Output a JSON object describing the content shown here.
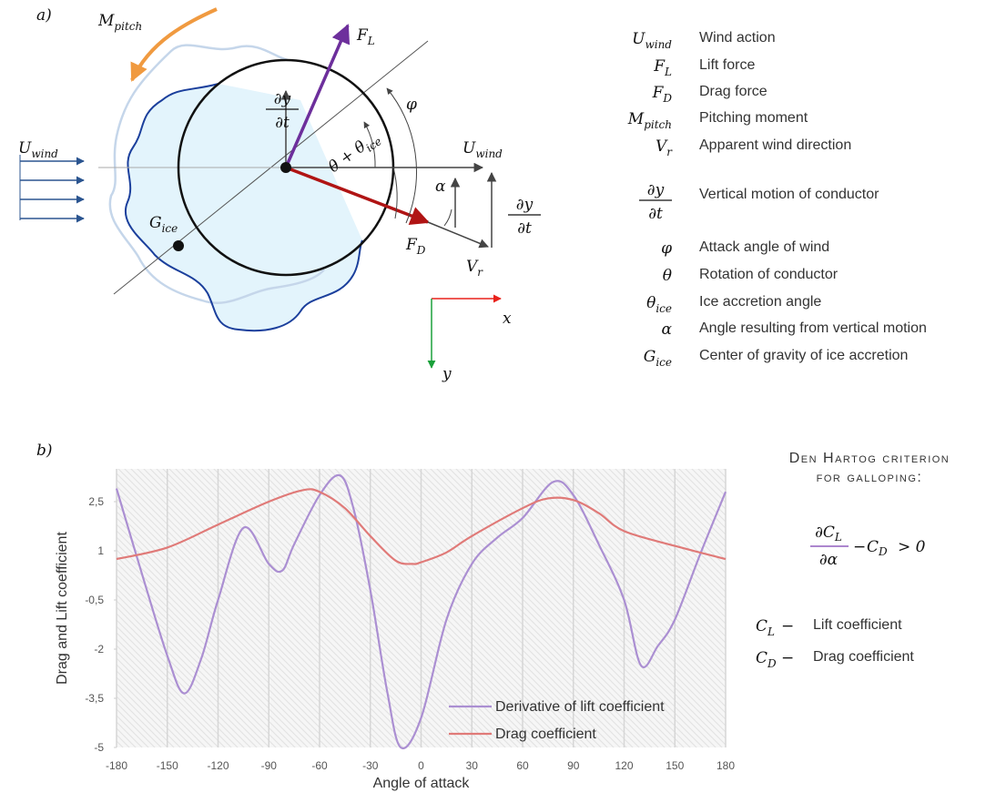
{
  "diagram": {
    "panel_label": "a)",
    "labels": [
      {
        "main": "M",
        "sub": "pitch"
      },
      {
        "main": "F",
        "sub": "L"
      },
      {
        "num": "∂y",
        "den": "∂t"
      },
      {
        "main": "φ"
      },
      {
        "main": "θ + θ",
        "sub": "ice"
      },
      {
        "main": "U",
        "sub": "wind"
      },
      {
        "main": "U",
        "sub": "wind"
      },
      {
        "main": "α"
      },
      {
        "num": "∂y",
        "den": "∂t"
      },
      {
        "main": "F",
        "sub": "D"
      },
      {
        "main": "V",
        "sub": "r"
      },
      {
        "main": "G",
        "sub": "ice"
      },
      {
        "main": "x"
      },
      {
        "main": "y"
      }
    ]
  },
  "legend": [
    {
      "symbol": {
        "main": "U",
        "sub": "wind"
      },
      "text": "Wind action"
    },
    {
      "symbol": {
        "main": "F",
        "sub": "L"
      },
      "text": "Lift force"
    },
    {
      "symbol": {
        "main": "F",
        "sub": "D"
      },
      "text": "Drag force"
    },
    {
      "symbol": {
        "main": "M",
        "sub": "pitch"
      },
      "text": "Pitching moment"
    },
    {
      "symbol": {
        "main": "V",
        "sub": "r"
      },
      "text": "Apparent wind direction"
    },
    {
      "symbol": {
        "num": "∂y",
        "den": "∂t"
      },
      "text": "Vertical motion of conductor"
    },
    {
      "symbol": {
        "main": "φ"
      },
      "text": "Attack angle of wind"
    },
    {
      "symbol": {
        "main": "θ"
      },
      "text": "Rotation of conductor"
    },
    {
      "symbol": {
        "main": "θ",
        "sub": "ice"
      },
      "text": "Ice accretion angle"
    },
    {
      "symbol": {
        "main": "α"
      },
      "text": "Angle resulting from vertical motion"
    },
    {
      "symbol": {
        "main": "G",
        "sub": "ice"
      },
      "text": "Center of gravity of ice accretion"
    }
  ],
  "panel_b_label": "b)",
  "criterion": {
    "title_lines": [
      "Den Hartog criterion",
      "for galloping:"
    ],
    "formula": {
      "num_main": "∂C",
      "num_sub": "L",
      "den": "∂α",
      "minus": "−",
      "term_main": "C",
      "term_sub": "D",
      "relation": "> 0"
    },
    "defs": [
      {
        "main": "C",
        "sub": "L",
        "dash": "−",
        "text": "Lift coefficient"
      },
      {
        "main": "C",
        "sub": "D",
        "dash": "−",
        "text": "Drag coefficient"
      }
    ]
  },
  "chart_data": {
    "type": "line",
    "x_label": "Angle of attack",
    "y_label": "Drag and Lift coefficient",
    "xlim": [
      -180,
      180
    ],
    "xticks": [
      -180,
      -150,
      -120,
      -90,
      -60,
      -30,
      0,
      30,
      60,
      90,
      120,
      150,
      180
    ],
    "ylim": [
      -5,
      3.5
    ],
    "yticks": [
      -5,
      {
        "value": -3.5,
        "label": "-3,5"
      },
      -2,
      {
        "value": -0.5,
        "label": "-0,5"
      },
      1,
      {
        "value": 2.5,
        "label": "2,5"
      }
    ],
    "grid": true,
    "series": [
      {
        "name": "Derivative of lift coefficient",
        "color": "#ab8fd2",
        "x": [
          -180,
          -165,
          -150,
          -140,
          -130,
          -120,
          -105,
          -90,
          -82,
          -75,
          -60,
          -48,
          -40,
          -30,
          -20,
          -12,
          0,
          15,
          30,
          45,
          60,
          78,
          90,
          105,
          120,
          130,
          140,
          150,
          165,
          180
        ],
        "values": [
          2.9,
          0.3,
          -2.2,
          -3.35,
          -2.3,
          -0.5,
          1.7,
          0.6,
          0.4,
          1.2,
          2.7,
          3.3,
          2.3,
          -0.2,
          -3.3,
          -5.0,
          -4.1,
          -1.1,
          0.6,
          1.4,
          2.0,
          3.1,
          2.7,
          1.2,
          -0.5,
          -2.5,
          -1.9,
          -1.1,
          0.9,
          2.8
        ]
      },
      {
        "name": "Drag coefficient",
        "color": "#e07a78",
        "x": [
          -180,
          -150,
          -120,
          -90,
          -70,
          -60,
          -45,
          -30,
          -15,
          -5,
          0,
          15,
          30,
          60,
          75,
          90,
          105,
          120,
          150,
          180
        ],
        "values": [
          0.75,
          1.1,
          1.8,
          2.5,
          2.85,
          2.8,
          2.3,
          1.45,
          0.7,
          0.6,
          0.65,
          0.95,
          1.45,
          2.3,
          2.6,
          2.55,
          2.15,
          1.6,
          1.15,
          0.75
        ]
      }
    ]
  }
}
